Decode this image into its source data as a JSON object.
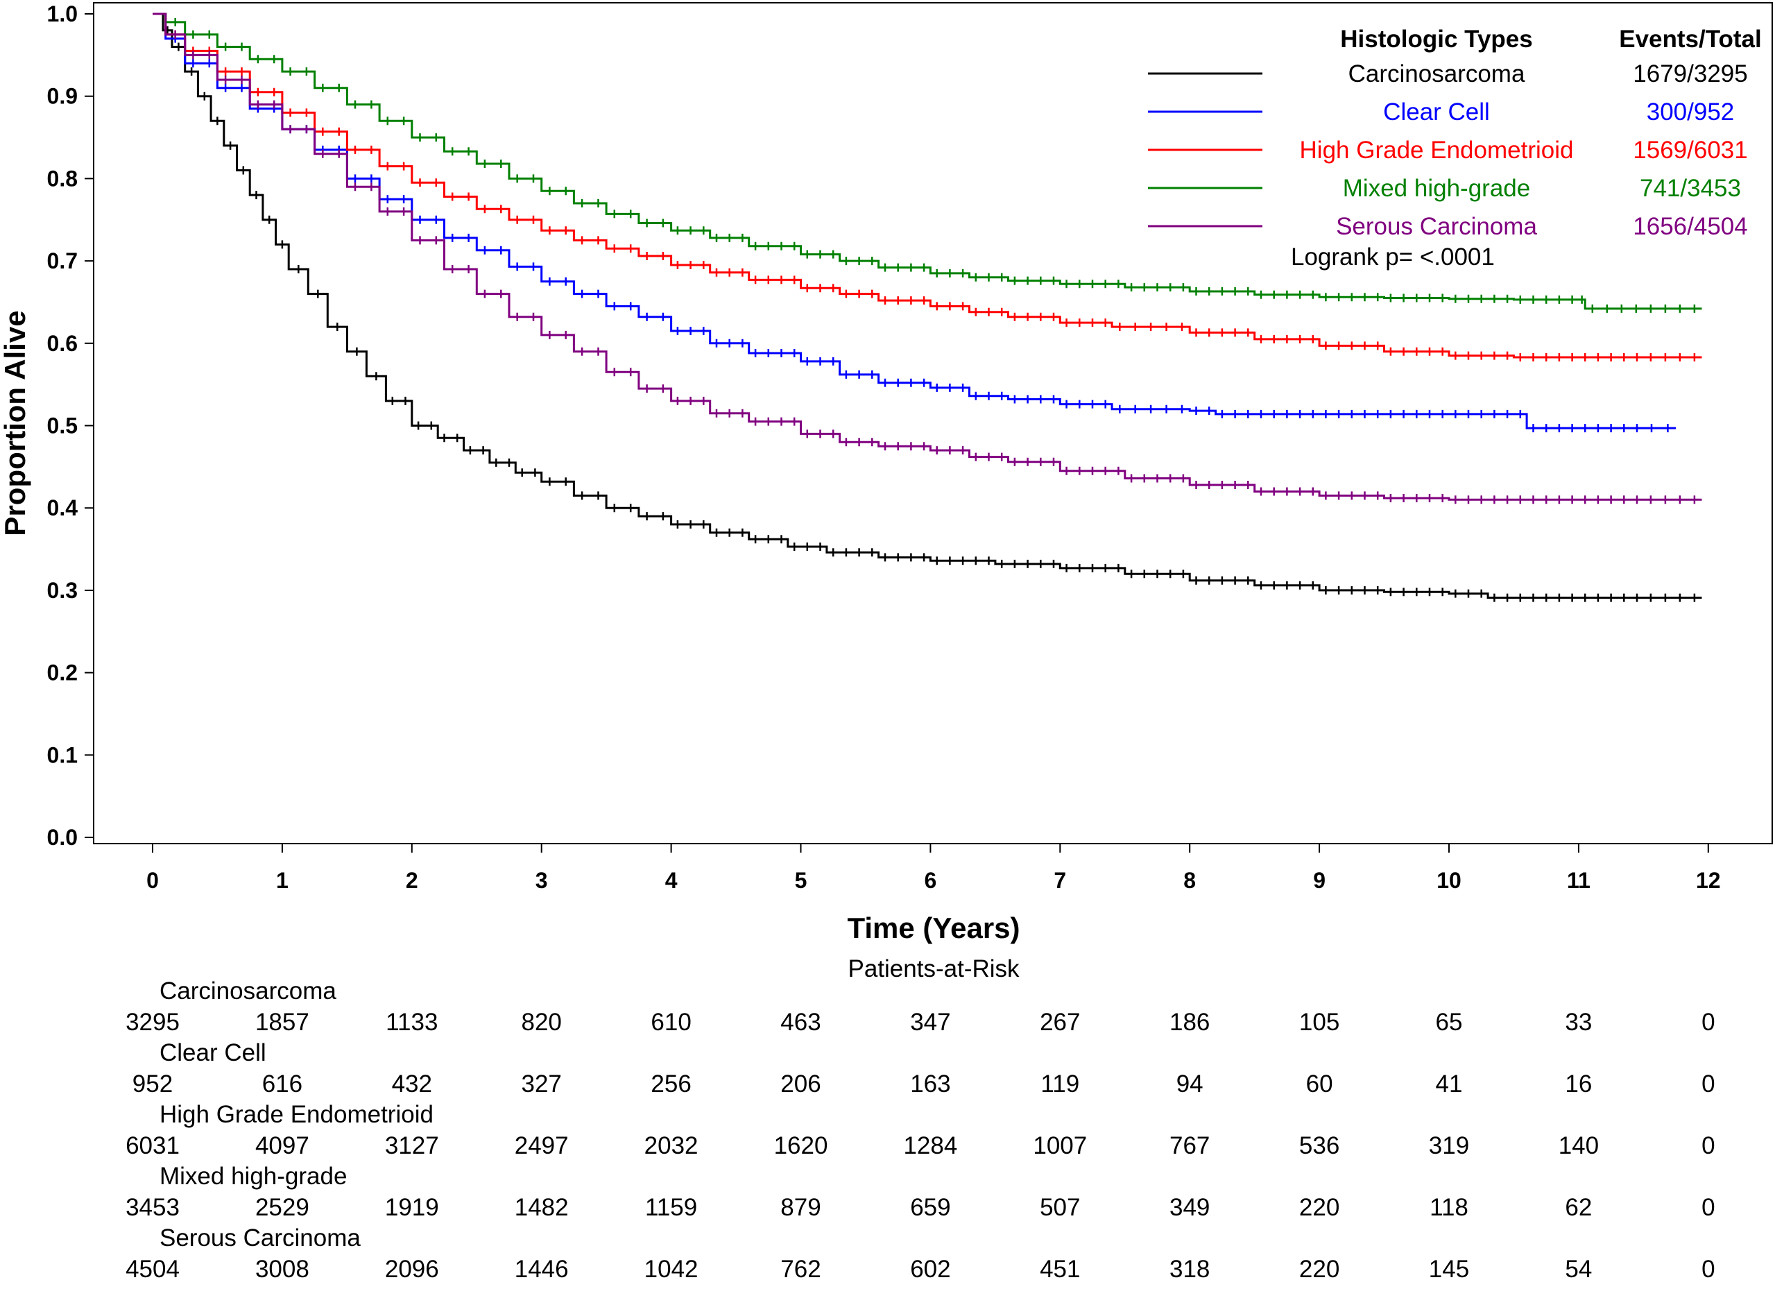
{
  "chart_data": {
    "type": "line",
    "subtype": "kaplan-meier",
    "xlabel": "Time (Years)",
    "ylabel": "Proportion Alive",
    "xlim": [
      0,
      12
    ],
    "ylim": [
      0,
      1
    ],
    "x_ticks": [
      "0",
      "1",
      "2",
      "3",
      "4",
      "5",
      "6",
      "7",
      "8",
      "9",
      "10",
      "11",
      "12"
    ],
    "y_ticks": [
      "0.0",
      "0.1",
      "0.2",
      "0.3",
      "0.4",
      "0.5",
      "0.6",
      "0.7",
      "0.8",
      "0.9",
      "1.0"
    ],
    "grid": false,
    "legend": {
      "placement": "top-right",
      "header_types": "Histologic Types",
      "header_events": "Events/Total",
      "logrank": "Logrank p= <.0001"
    },
    "series": [
      {
        "name": "Carcinosarcoma",
        "events": "1679/3295",
        "color": "#000000",
        "x": [
          0,
          0.08,
          0.15,
          0.25,
          0.35,
          0.45,
          0.55,
          0.65,
          0.75,
          0.85,
          0.95,
          1.05,
          1.2,
          1.35,
          1.5,
          1.65,
          1.8,
          2.0,
          2.2,
          2.4,
          2.6,
          2.8,
          3.0,
          3.25,
          3.5,
          3.75,
          4.0,
          4.3,
          4.6,
          4.9,
          5.2,
          5.6,
          6.0,
          6.5,
          7.0,
          7.5,
          8.0,
          8.5,
          9.0,
          9.5,
          10.0,
          10.3,
          10.7,
          11.0,
          11.5,
          11.95
        ],
        "y": [
          1,
          0.98,
          0.96,
          0.93,
          0.9,
          0.87,
          0.84,
          0.81,
          0.78,
          0.75,
          0.72,
          0.69,
          0.66,
          0.62,
          0.59,
          0.56,
          0.53,
          0.5,
          0.485,
          0.47,
          0.455,
          0.443,
          0.432,
          0.415,
          0.4,
          0.39,
          0.38,
          0.37,
          0.362,
          0.353,
          0.346,
          0.34,
          0.336,
          0.332,
          0.327,
          0.32,
          0.312,
          0.306,
          0.3,
          0.298,
          0.296,
          0.291,
          0.291,
          0.291,
          0.291,
          0.291
        ]
      },
      {
        "name": "Clear Cell",
        "events": "300/952",
        "color": "#0000ff",
        "x": [
          0,
          0.1,
          0.25,
          0.5,
          0.75,
          1.0,
          1.25,
          1.5,
          1.75,
          2.0,
          2.25,
          2.5,
          2.75,
          3.0,
          3.25,
          3.5,
          3.75,
          4.0,
          4.3,
          4.6,
          5.0,
          5.3,
          5.6,
          6.0,
          6.3,
          6.6,
          7.0,
          7.4,
          8.0,
          8.2,
          8.6,
          9.0,
          9.5,
          10.0,
          10.5,
          10.6,
          11.0,
          11.5,
          11.75
        ],
        "y": [
          1,
          0.97,
          0.94,
          0.91,
          0.885,
          0.86,
          0.835,
          0.8,
          0.775,
          0.75,
          0.728,
          0.713,
          0.693,
          0.675,
          0.66,
          0.645,
          0.632,
          0.615,
          0.6,
          0.588,
          0.578,
          0.562,
          0.552,
          0.546,
          0.536,
          0.532,
          0.526,
          0.52,
          0.518,
          0.514,
          0.514,
          0.514,
          0.514,
          0.514,
          0.514,
          0.497,
          0.497,
          0.497,
          0.497
        ]
      },
      {
        "name": "High Grade Endometrioid",
        "events": "1569/6031",
        "color": "#ff0000",
        "x": [
          0,
          0.1,
          0.25,
          0.5,
          0.75,
          1.0,
          1.25,
          1.5,
          1.75,
          2.0,
          2.25,
          2.5,
          2.75,
          3.0,
          3.25,
          3.5,
          3.75,
          4.0,
          4.3,
          4.6,
          5.0,
          5.3,
          5.6,
          6.0,
          6.3,
          6.6,
          7.0,
          7.4,
          8.0,
          8.5,
          9.0,
          9.5,
          10.0,
          10.5,
          11.0,
          11.5,
          11.95
        ],
        "y": [
          1,
          0.975,
          0.955,
          0.93,
          0.905,
          0.88,
          0.857,
          0.835,
          0.815,
          0.795,
          0.778,
          0.763,
          0.75,
          0.737,
          0.725,
          0.715,
          0.706,
          0.695,
          0.686,
          0.677,
          0.667,
          0.66,
          0.652,
          0.645,
          0.638,
          0.632,
          0.625,
          0.62,
          0.613,
          0.605,
          0.597,
          0.59,
          0.585,
          0.583,
          0.583,
          0.583,
          0.583
        ]
      },
      {
        "name": "Mixed high-grade",
        "events": "741/3453",
        "color": "#008000",
        "x": [
          0,
          0.1,
          0.25,
          0.5,
          0.75,
          1.0,
          1.25,
          1.5,
          1.75,
          2.0,
          2.25,
          2.5,
          2.75,
          3.0,
          3.25,
          3.5,
          3.75,
          4.0,
          4.3,
          4.6,
          5.0,
          5.3,
          5.6,
          6.0,
          6.3,
          6.6,
          7.0,
          7.5,
          8.0,
          8.5,
          9.0,
          9.5,
          10.0,
          10.5,
          11.0,
          11.05,
          11.5,
          11.95
        ],
        "y": [
          1,
          0.99,
          0.975,
          0.96,
          0.945,
          0.93,
          0.91,
          0.89,
          0.87,
          0.85,
          0.833,
          0.818,
          0.8,
          0.785,
          0.77,
          0.757,
          0.746,
          0.737,
          0.728,
          0.718,
          0.708,
          0.7,
          0.692,
          0.685,
          0.68,
          0.676,
          0.672,
          0.668,
          0.663,
          0.659,
          0.656,
          0.655,
          0.654,
          0.653,
          0.653,
          0.642,
          0.642,
          0.642
        ]
      },
      {
        "name": "Serous Carcinoma",
        "events": "1656/4504",
        "color": "#800080",
        "x": [
          0,
          0.1,
          0.25,
          0.5,
          0.75,
          1.0,
          1.25,
          1.5,
          1.75,
          2.0,
          2.25,
          2.5,
          2.75,
          3.0,
          3.25,
          3.5,
          3.75,
          4.0,
          4.3,
          4.6,
          5.0,
          5.3,
          5.6,
          6.0,
          6.3,
          6.6,
          7.0,
          7.5,
          8.0,
          8.5,
          9.0,
          9.5,
          10.0,
          10.5,
          11.0,
          11.5,
          11.95
        ],
        "y": [
          1,
          0.975,
          0.95,
          0.92,
          0.89,
          0.86,
          0.83,
          0.79,
          0.76,
          0.725,
          0.69,
          0.66,
          0.632,
          0.61,
          0.59,
          0.565,
          0.545,
          0.53,
          0.515,
          0.505,
          0.49,
          0.48,
          0.475,
          0.47,
          0.462,
          0.456,
          0.445,
          0.436,
          0.428,
          0.42,
          0.415,
          0.412,
          0.41,
          0.41,
          0.41,
          0.41,
          0.41
        ]
      }
    ]
  },
  "risk_table": {
    "title": "Patients-at-Risk",
    "rows": [
      {
        "label": "Carcinosarcoma",
        "values": [
          "3295",
          "1857",
          "1133",
          "820",
          "610",
          "463",
          "347",
          "267",
          "186",
          "105",
          "65",
          "33",
          "0"
        ]
      },
      {
        "label": "Clear Cell",
        "values": [
          "952",
          "616",
          "432",
          "327",
          "256",
          "206",
          "163",
          "119",
          "94",
          "60",
          "41",
          "16",
          "0"
        ]
      },
      {
        "label": "High Grade Endometrioid",
        "values": [
          "6031",
          "4097",
          "3127",
          "2497",
          "2032",
          "1620",
          "1284",
          "1007",
          "767",
          "536",
          "319",
          "140",
          "0"
        ]
      },
      {
        "label": "Mixed high-grade",
        "values": [
          "3453",
          "2529",
          "1919",
          "1482",
          "1159",
          "879",
          "659",
          "507",
          "349",
          "220",
          "118",
          "62",
          "0"
        ]
      },
      {
        "label": "Serous Carcinoma",
        "values": [
          "4504",
          "3008",
          "2096",
          "1446",
          "1042",
          "762",
          "602",
          "451",
          "318",
          "220",
          "145",
          "54",
          "0"
        ]
      }
    ]
  }
}
